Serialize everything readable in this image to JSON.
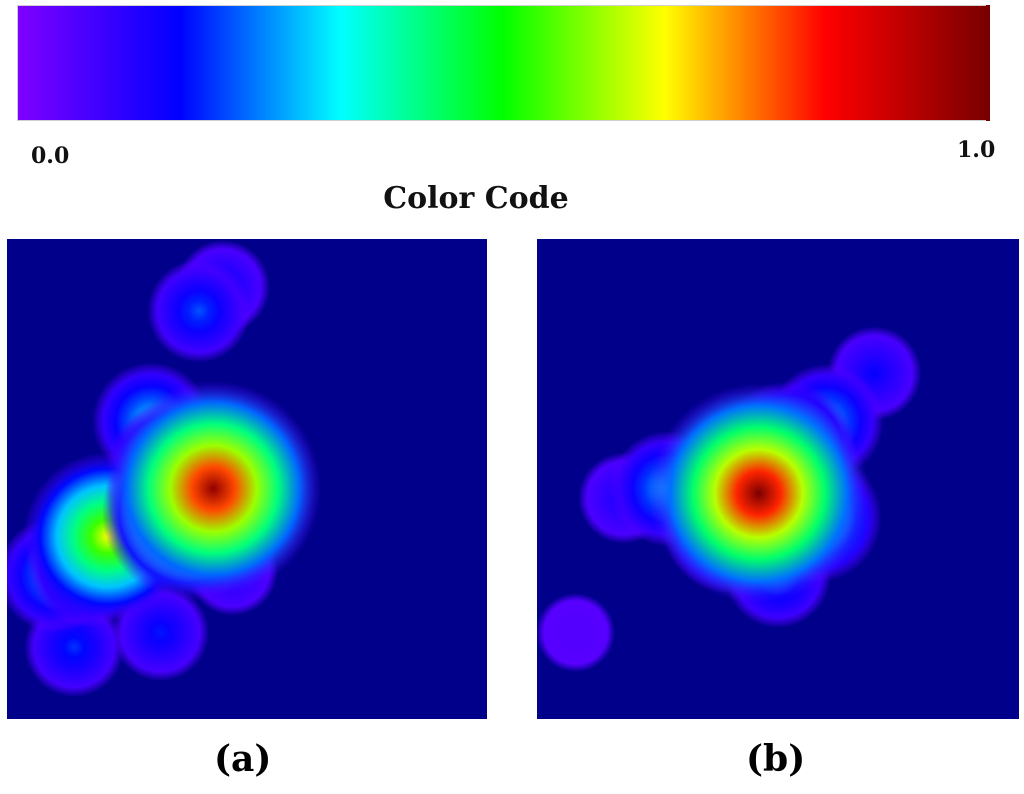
{
  "chart_data": {
    "type": "heatmap",
    "colorbar": {
      "title": "Color Code",
      "min_label": "0.0",
      "max_label": "1.0",
      "range": [
        0.0,
        1.0
      ],
      "colormap": [
        "#7f00ff",
        "#0000ff",
        "#00ffff",
        "#00ff00",
        "#ffff00",
        "#ff0000",
        "#7a0000"
      ]
    },
    "panels": [
      {
        "id": "a",
        "label": "(a)",
        "background_value": 0.04,
        "hotspots": [
          {
            "x": 0.43,
            "y": 0.52,
            "value": 0.97
          },
          {
            "x": 0.38,
            "y": 0.57,
            "value": 0.7
          },
          {
            "x": 0.35,
            "y": 0.48,
            "value": 0.45
          },
          {
            "x": 0.21,
            "y": 0.62,
            "value": 0.66
          },
          {
            "x": 0.17,
            "y": 0.68,
            "value": 0.35
          },
          {
            "x": 0.1,
            "y": 0.7,
            "value": 0.3
          },
          {
            "x": 0.3,
            "y": 0.38,
            "value": 0.32
          },
          {
            "x": 0.4,
            "y": 0.15,
            "value": 0.22
          },
          {
            "x": 0.45,
            "y": 0.1,
            "value": 0.16
          },
          {
            "x": 0.14,
            "y": 0.85,
            "value": 0.2
          },
          {
            "x": 0.32,
            "y": 0.82,
            "value": 0.18
          },
          {
            "x": 0.47,
            "y": 0.69,
            "value": 0.14
          }
        ]
      },
      {
        "id": "b",
        "label": "(b)",
        "background_value": 0.04,
        "hotspots": [
          {
            "x": 0.46,
            "y": 0.53,
            "value": 1.0
          },
          {
            "x": 0.52,
            "y": 0.44,
            "value": 0.45
          },
          {
            "x": 0.4,
            "y": 0.6,
            "value": 0.42
          },
          {
            "x": 0.58,
            "y": 0.58,
            "value": 0.4
          },
          {
            "x": 0.27,
            "y": 0.52,
            "value": 0.3
          },
          {
            "x": 0.6,
            "y": 0.38,
            "value": 0.3
          },
          {
            "x": 0.7,
            "y": 0.28,
            "value": 0.16
          },
          {
            "x": 0.5,
            "y": 0.7,
            "value": 0.24
          },
          {
            "x": 0.18,
            "y": 0.54,
            "value": 0.14
          },
          {
            "x": 0.08,
            "y": 0.82,
            "value": 0.06
          }
        ]
      }
    ]
  }
}
